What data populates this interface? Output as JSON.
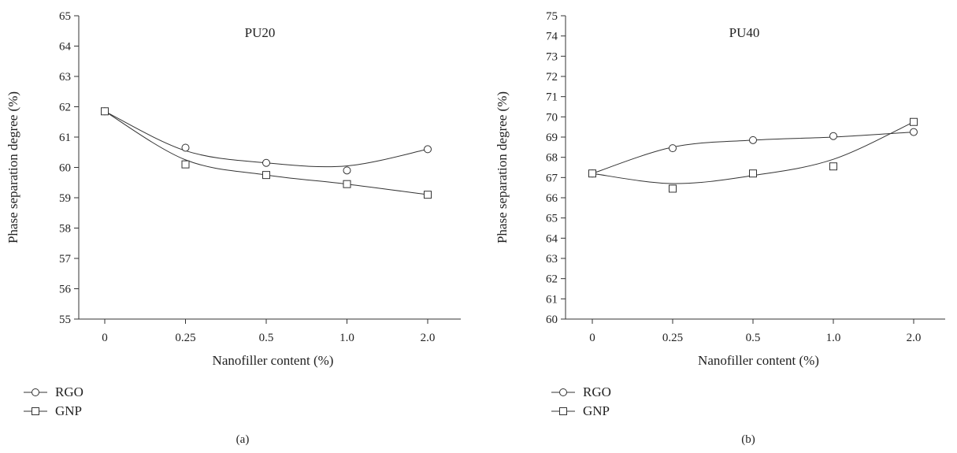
{
  "chart_data": [
    {
      "type": "scatter",
      "panel_label": "(a)",
      "title": "PU20",
      "xlabel": "Nanofiller content (%)",
      "ylabel": "Phase separation degree (%)",
      "categories": [
        "0",
        "0.25",
        "0.5",
        "1.0",
        "2.0"
      ],
      "ylim": [
        55,
        65
      ],
      "yticks": [
        55,
        56,
        57,
        58,
        59,
        60,
        61,
        62,
        63,
        64,
        65
      ],
      "grid": false,
      "legend_position": "bottom-left",
      "series": [
        {
          "name": "RGO",
          "marker": "circle",
          "values": [
            61.85,
            60.65,
            60.15,
            59.9,
            60.6
          ],
          "fit": [
            61.85,
            60.55,
            60.15,
            60.05,
            60.6
          ]
        },
        {
          "name": "GNP",
          "marker": "square",
          "values": [
            61.85,
            60.1,
            59.75,
            59.45,
            59.1
          ],
          "fit": [
            61.85,
            60.25,
            59.75,
            59.45,
            59.1
          ]
        }
      ]
    },
    {
      "type": "scatter",
      "panel_label": "(b)",
      "title": "PU40",
      "xlabel": "Nanofiller content (%)",
      "ylabel": "Phase separation degree (%)",
      "categories": [
        "0",
        "0.25",
        "0.5",
        "1.0",
        "2.0"
      ],
      "ylim": [
        60,
        75
      ],
      "yticks": [
        60,
        61,
        62,
        63,
        64,
        65,
        66,
        67,
        68,
        69,
        70,
        71,
        72,
        73,
        74,
        75
      ],
      "grid": false,
      "legend_position": "bottom-left",
      "series": [
        {
          "name": "RGO",
          "marker": "circle",
          "values": [
            67.2,
            68.45,
            68.85,
            69.05,
            69.25
          ],
          "fit": [
            67.2,
            68.5,
            68.85,
            69.0,
            69.25
          ]
        },
        {
          "name": "GNP",
          "marker": "square",
          "values": [
            67.2,
            66.45,
            67.2,
            67.55,
            69.75
          ],
          "fit": [
            67.2,
            66.7,
            67.1,
            67.9,
            69.75
          ]
        }
      ]
    }
  ]
}
